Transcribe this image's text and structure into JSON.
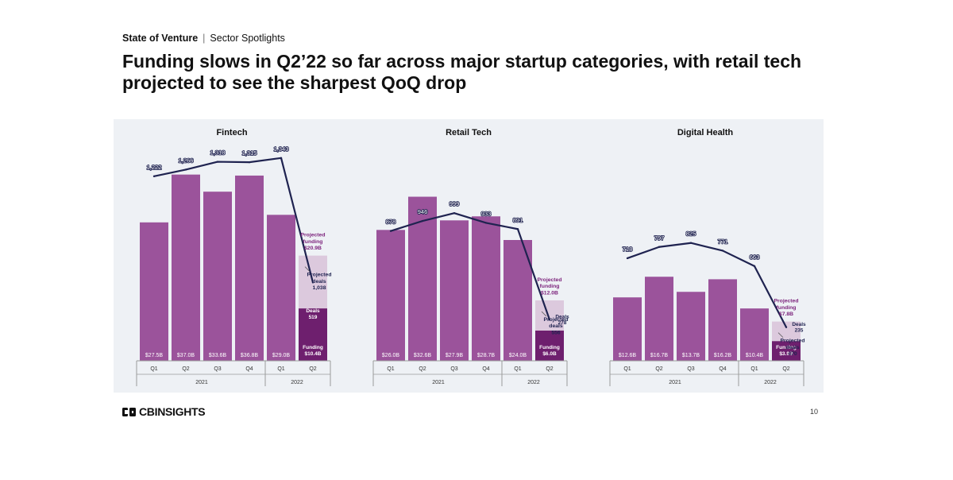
{
  "header": {
    "section": "State of Venture",
    "subsection": "Sector Spotlights"
  },
  "title": "Funding slows in Q2’22 so far across major startup categories, with retail tech projected to see the sharpest QoQ drop",
  "colors": {
    "panel_bg": "#eef1f5",
    "bar": "#9b539b",
    "bar_current": "#6e1f6e",
    "bar_projected": "#dcc9dd",
    "deals_line": "#1f2350",
    "projected_label": "#7c237c",
    "axis": "#9a9a9a"
  },
  "footer": {
    "logo_text": "CBINSIGHTS",
    "logo_icon": "cb-insights-logo-icon",
    "page_number": "10"
  },
  "chart_data": [
    {
      "type": "bar+line",
      "title": "Fintech",
      "categories": [
        "Q1",
        "Q2",
        "Q3",
        "Q4",
        "Q1",
        "Q2"
      ],
      "years": [
        {
          "label": "2021",
          "span": 4
        },
        {
          "label": "2022",
          "span": 2
        }
      ],
      "ylim": [
        0,
        42
      ],
      "deals_ylim": [
        0,
        1400
      ],
      "series": [
        {
          "name": "Funding ($B)",
          "values": [
            27.5,
            37.0,
            33.6,
            36.8,
            29.0,
            10.4
          ],
          "labels": [
            "$27.5B",
            "$37.0B",
            "$33.6B",
            "$36.8B",
            "$29.0B",
            "Funding\n$10.4B"
          ]
        },
        {
          "name": "Deals",
          "values": [
            1222,
            1266,
            1318,
            1315,
            1343,
            519
          ],
          "labels": [
            "1,222",
            "1,266",
            "1,318",
            "1,315",
            "1,343",
            "Deals\n519"
          ]
        }
      ],
      "projected": {
        "funding": 20.9,
        "deals": 1038,
        "funding_label": "Projected\nfunding\n$20.9B",
        "deals_label": "Projected\ndeals\n1,038"
      }
    },
    {
      "type": "bar+line",
      "title": "Retail Tech",
      "categories": [
        "Q1",
        "Q2",
        "Q3",
        "Q4",
        "Q1",
        "Q2"
      ],
      "years": [
        {
          "label": "2021",
          "span": 4
        },
        {
          "label": "2022",
          "span": 2
        }
      ],
      "ylim": [
        0,
        42
      ],
      "deals_ylim": [
        0,
        1430
      ],
      "series": [
        {
          "name": "Funding ($B)",
          "values": [
            26.0,
            32.6,
            27.9,
            28.7,
            24.0,
            6.0
          ],
          "labels": [
            "$26.0B",
            "$32.6B",
            "$27.9B",
            "$28.7B",
            "$24.0B",
            "Funding\n$6.0B"
          ]
        },
        {
          "name": "Deals",
          "values": [
            878,
            946,
            999,
            933,
            891,
            278
          ],
          "labels": [
            "878",
            "946",
            "999",
            "933",
            "891",
            "Deals\n278"
          ]
        }
      ],
      "projected": {
        "funding": 12.0,
        "deals": 556,
        "funding_label": "Projected\nfunding\n$12.0B",
        "deals_label": "Projected\ndeals\n556"
      }
    },
    {
      "type": "bar+line",
      "title": "Digital Health",
      "categories": [
        "Q1",
        "Q2",
        "Q3",
        "Q4",
        "Q1",
        "Q2"
      ],
      "years": [
        {
          "label": "2021",
          "span": 4
        },
        {
          "label": "2022",
          "span": 2
        }
      ],
      "ylim": [
        0,
        42
      ],
      "deals_ylim": [
        0,
        1480
      ],
      "series": [
        {
          "name": "Funding ($B)",
          "values": [
            12.6,
            16.7,
            13.7,
            16.2,
            10.4,
            3.9
          ],
          "labels": [
            "$12.6B",
            "$16.7B",
            "$13.7B",
            "$16.2B",
            "$10.4B",
            "Funding\n$3.9B"
          ]
        },
        {
          "name": "Deals",
          "values": [
            718,
            797,
            825,
            771,
            663,
            235
          ],
          "labels": [
            "718",
            "797",
            "825",
            "771",
            "663",
            "Deals\n235"
          ]
        }
      ],
      "projected": {
        "funding": 7.8,
        "deals": 470,
        "funding_label": "Projected\nfunding\n$7.8B",
        "deals_label": "Projected\ndeals\n470"
      }
    }
  ]
}
